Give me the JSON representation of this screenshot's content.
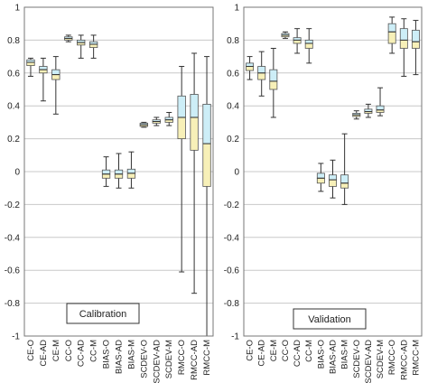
{
  "colors": {
    "upper_box": "#cdeef7",
    "lower_box": "#f7f0b8",
    "box_stroke": "#555555",
    "grid": "#c8c8c8",
    "frame": "#777777"
  },
  "chart_data": [
    {
      "type": "box",
      "title": "",
      "label": "Calibration",
      "ylim": [
        -1,
        1
      ],
      "yticks": [
        "1",
        "0.8",
        "0.6",
        "0.4",
        "0.2",
        "0",
        "-0.2",
        "-0.4",
        "-0.6",
        "-0.8",
        "-1"
      ],
      "grid": true,
      "categories": [
        "CE-O",
        "CE-AD",
        "CE-M",
        "CC-O",
        "CC-AD",
        "CC-M",
        "BIAS-O",
        "BIAS-AD",
        "BIAS-M",
        "SCDEV-O",
        "SCDEV-AD",
        "SCDEV-M",
        "RMCC-O",
        "RMCC-AD",
        "RMCC-M"
      ],
      "boxes": [
        {
          "min": 0.58,
          "q1": 0.645,
          "median": 0.665,
          "q3": 0.68,
          "max": 0.69
        },
        {
          "min": 0.43,
          "q1": 0.6,
          "median": 0.62,
          "q3": 0.64,
          "max": 0.69
        },
        {
          "min": 0.35,
          "q1": 0.56,
          "median": 0.59,
          "q3": 0.62,
          "max": 0.7
        },
        {
          "min": 0.79,
          "q1": 0.8,
          "median": 0.81,
          "q3": 0.82,
          "max": 0.83
        },
        {
          "min": 0.69,
          "q1": 0.77,
          "median": 0.785,
          "q3": 0.8,
          "max": 0.83
        },
        {
          "min": 0.69,
          "q1": 0.755,
          "median": 0.775,
          "q3": 0.79,
          "max": 0.83
        },
        {
          "min": -0.09,
          "q1": -0.04,
          "median": -0.015,
          "q3": 0.01,
          "max": 0.09
        },
        {
          "min": -0.1,
          "q1": -0.04,
          "median": -0.015,
          "q3": 0.01,
          "max": 0.11
        },
        {
          "min": -0.1,
          "q1": -0.04,
          "median": -0.01,
          "q3": 0.015,
          "max": 0.12
        },
        {
          "min": 0.27,
          "q1": 0.275,
          "median": 0.285,
          "q3": 0.295,
          "max": 0.3
        },
        {
          "min": 0.28,
          "q1": 0.295,
          "median": 0.305,
          "q3": 0.315,
          "max": 0.33
        },
        {
          "min": 0.28,
          "q1": 0.3,
          "median": 0.315,
          "q3": 0.33,
          "max": 0.36
        },
        {
          "min": -0.61,
          "q1": 0.2,
          "median": 0.33,
          "q3": 0.46,
          "max": 0.64
        },
        {
          "min": -0.74,
          "q1": 0.13,
          "median": 0.33,
          "q3": 0.47,
          "max": 0.72
        },
        {
          "min": -1.0,
          "q1": -0.09,
          "median": 0.17,
          "q3": 0.41,
          "max": 0.7
        }
      ]
    },
    {
      "type": "box",
      "title": "",
      "label": "Validation",
      "ylim": [
        -1,
        1
      ],
      "yticks": [
        "1",
        "0.8",
        "0.6",
        "0.4",
        "0.2",
        "0",
        "-0.2",
        "-0.4",
        "-0.6",
        "-0.8",
        "-1"
      ],
      "grid": true,
      "categories": [
        "CE-O",
        "CE-AD",
        "CE-M",
        "CC-O",
        "CC-AD",
        "CC-M",
        "BIAS-O",
        "BIAS-AD",
        "BIAS-M",
        "SCDEV-O",
        "SCDEV-AD",
        "SCDEV-M",
        "RMCC-O",
        "RMCC-AD",
        "RMCC-M"
      ],
      "boxes": [
        {
          "min": 0.56,
          "q1": 0.615,
          "median": 0.64,
          "q3": 0.66,
          "max": 0.7
        },
        {
          "min": 0.46,
          "q1": 0.56,
          "median": 0.6,
          "q3": 0.64,
          "max": 0.73
        },
        {
          "min": 0.33,
          "q1": 0.5,
          "median": 0.55,
          "q3": 0.62,
          "max": 0.75
        },
        {
          "min": 0.81,
          "q1": 0.82,
          "median": 0.83,
          "q3": 0.84,
          "max": 0.85
        },
        {
          "min": 0.72,
          "q1": 0.78,
          "median": 0.8,
          "q3": 0.815,
          "max": 0.87
        },
        {
          "min": 0.66,
          "q1": 0.75,
          "median": 0.78,
          "q3": 0.8,
          "max": 0.87
        },
        {
          "min": -0.12,
          "q1": -0.07,
          "median": -0.04,
          "q3": -0.01,
          "max": 0.05
        },
        {
          "min": -0.16,
          "q1": -0.09,
          "median": -0.05,
          "q3": -0.02,
          "max": 0.07
        },
        {
          "min": -0.2,
          "q1": -0.1,
          "median": -0.07,
          "q3": -0.02,
          "max": 0.23
        },
        {
          "min": 0.32,
          "q1": 0.335,
          "median": 0.345,
          "q3": 0.355,
          "max": 0.37
        },
        {
          "min": 0.33,
          "q1": 0.355,
          "median": 0.365,
          "q3": 0.38,
          "max": 0.41
        },
        {
          "min": 0.34,
          "q1": 0.36,
          "median": 0.375,
          "q3": 0.4,
          "max": 0.51
        },
        {
          "min": 0.72,
          "q1": 0.78,
          "median": 0.85,
          "q3": 0.9,
          "max": 0.94
        },
        {
          "min": 0.58,
          "q1": 0.75,
          "median": 0.8,
          "q3": 0.87,
          "max": 0.93
        },
        {
          "min": 0.59,
          "q1": 0.75,
          "median": 0.79,
          "q3": 0.86,
          "max": 0.92
        }
      ]
    }
  ]
}
